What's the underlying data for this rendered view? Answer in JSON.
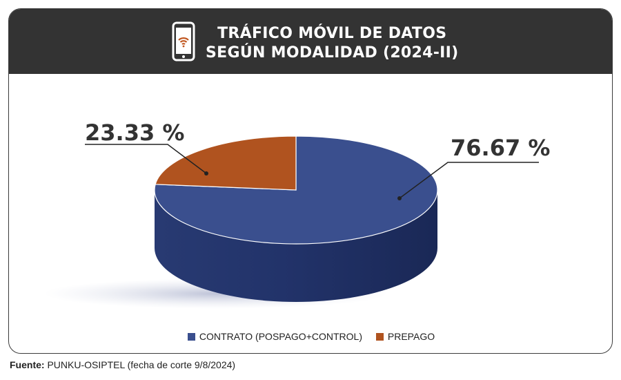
{
  "header": {
    "title_line1": "TRÁFICO MÓVIL DE DATOS",
    "title_line2": "SEGÚN MODALIDAD (2024-II)",
    "icon": "smartphone-wifi-icon"
  },
  "chart_data": {
    "type": "pie",
    "title": "TRÁFICO MÓVIL DE DATOS SEGÚN MODALIDAD (2024-II)",
    "slices": [
      {
        "label": "CONTRATO (POSPAGO+CONTROL)",
        "value": 76.67,
        "display": "76.67 %",
        "color": "#3a4f8e"
      },
      {
        "label": "PREPAGO",
        "value": 23.33,
        "display": "23.33 %",
        "color": "#b0531f"
      }
    ],
    "legend_position": "bottom"
  },
  "legend": {
    "items": [
      {
        "label": "CONTRATO (POSPAGO+CONTROL)",
        "color": "#3a4f8e"
      },
      {
        "label": "PREPAGO",
        "color": "#b0531f"
      }
    ]
  },
  "source": {
    "label": "Fuente:",
    "text": " PUNKU-OSIPTEL (fecha de corte 9/8/2024)"
  }
}
